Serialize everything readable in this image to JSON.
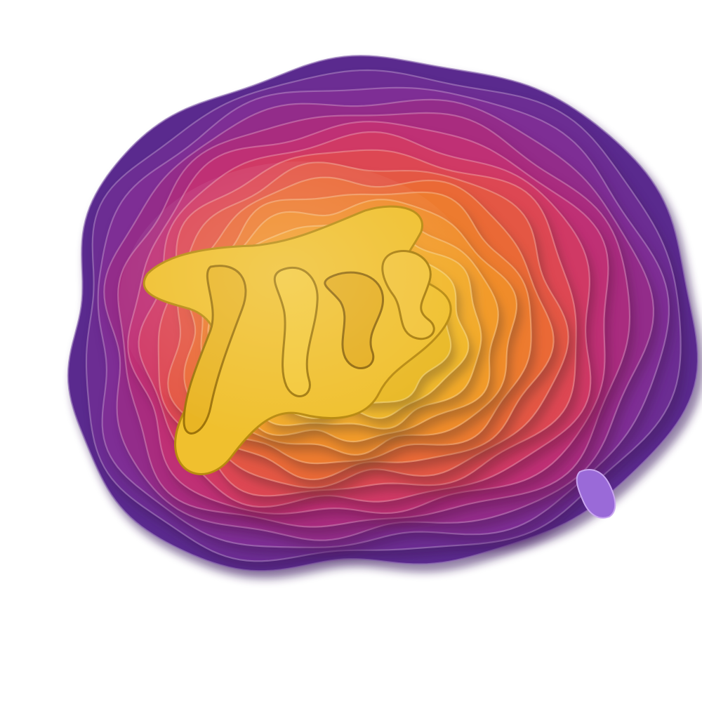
{
  "image": {
    "subject": "layered-wavy-abstract-form",
    "background": "#ffffff",
    "palette": [
      "#5a2a8e",
      "#7a2f97",
      "#a02a83",
      "#c93270",
      "#e04a4e",
      "#ea6a35",
      "#f08a2a",
      "#f3a52a",
      "#f0bf2c",
      "#d8a816"
    ],
    "accent_tab": "#9a6ad8"
  }
}
